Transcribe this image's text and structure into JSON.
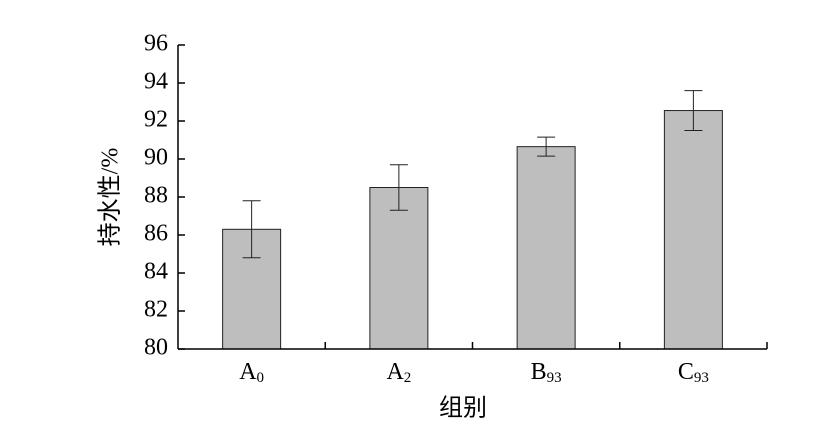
{
  "chart_data": {
    "type": "bar",
    "x_label": "组别",
    "y_label": "持水性/%",
    "categories": [
      "A0",
      "A2",
      "B93",
      "C93"
    ],
    "values": [
      86.3,
      88.5,
      90.65,
      92.55
    ],
    "errors": [
      1.5,
      1.2,
      0.5,
      1.05
    ],
    "color": "#bebebe",
    "ylim": [
      80,
      96
    ],
    "yticks": [
      80,
      82,
      84,
      86,
      88,
      90,
      92,
      94,
      96
    ]
  }
}
